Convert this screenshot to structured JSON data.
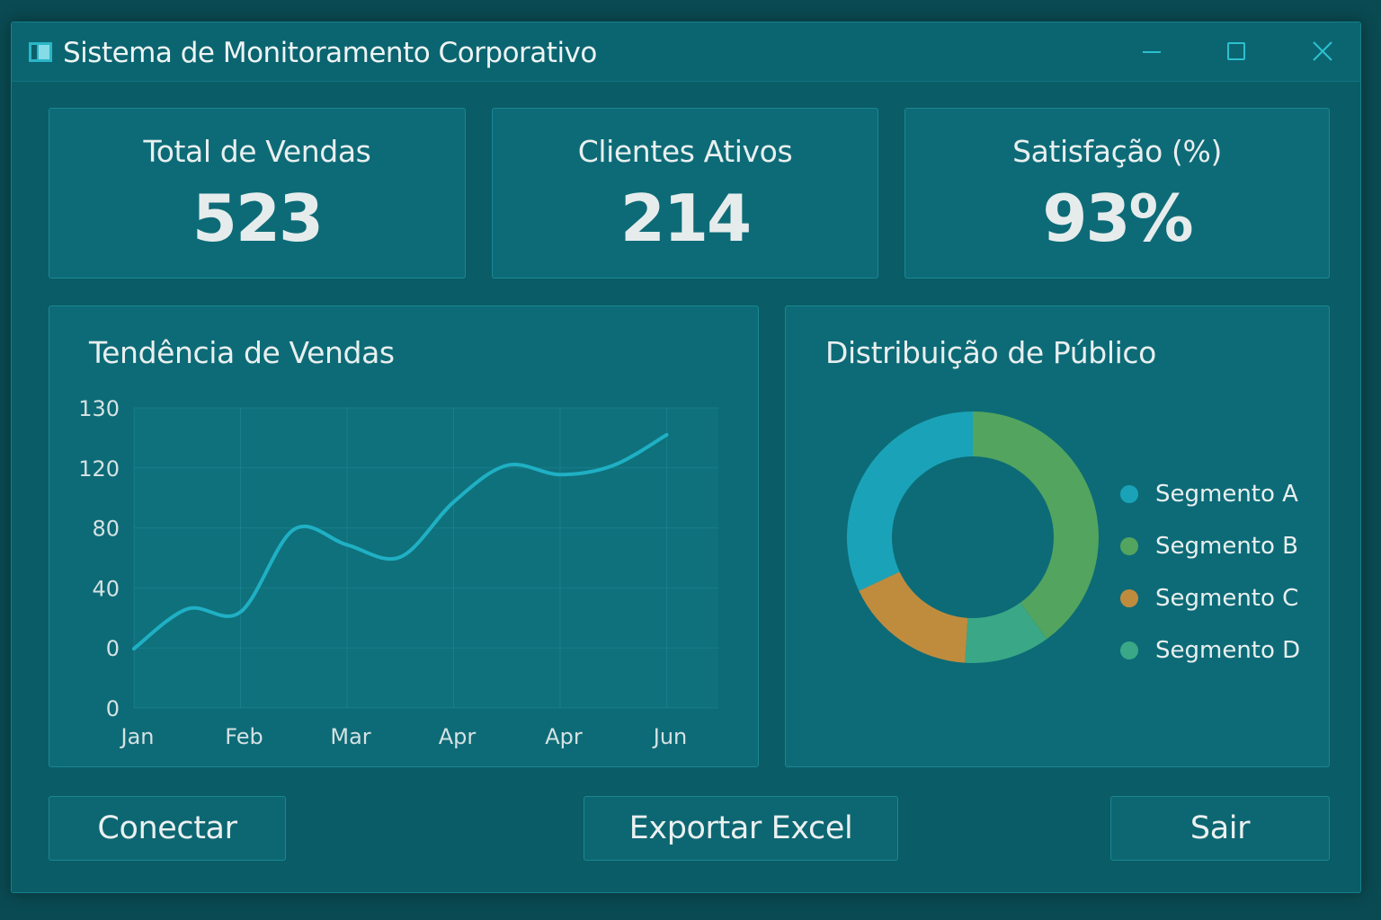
{
  "window": {
    "title": "Sistema de Monitoramento Corporativo",
    "icon": "app-window-icon",
    "controls": [
      "minimize-icon",
      "maximize-icon",
      "close-icon"
    ]
  },
  "kpis": [
    {
      "label": "Total de Vendas",
      "value": "523"
    },
    {
      "label": "Clientes Ativos",
      "value": "214"
    },
    {
      "label": "Satisfação (%)",
      "value": "93%"
    }
  ],
  "sales_panel": {
    "title": "Tendência de Vendas"
  },
  "audience_panel": {
    "title": "Distribuição de Público"
  },
  "buttons": {
    "connect": "Conectar",
    "export": "Exportar Excel",
    "exit": "Sair"
  },
  "colors": {
    "line": "#1fb0c4",
    "segment_a": "#1aa3b8",
    "segment_b": "#52a45f",
    "segment_c": "#bf8c3e",
    "segment_d": "#3aa886"
  },
  "chart_data": [
    {
      "type": "line",
      "title": "Tendência de Vendas",
      "categories": [
        "Jan",
        "Feb",
        "Mar",
        "Apr",
        "Apr",
        "Jun"
      ],
      "y_tick_labels": [
        "0",
        "0",
        "40",
        "80",
        "120",
        "130"
      ],
      "x": [
        "Jan",
        "Jan/Feb",
        "Feb",
        "Mar",
        "Mar/Apr",
        "Apr",
        "Apr/Apr",
        "Apr",
        "Apr/Jun",
        "Jun",
        "Jun+"
      ],
      "values": [
        0,
        26,
        24,
        78,
        68,
        60,
        96,
        120,
        114,
        120,
        140
      ],
      "grid": true
    },
    {
      "type": "pie",
      "title": "Distribuição de Público",
      "donut": true,
      "labels": [
        "Segmento A",
        "Segmento B",
        "Segmento C",
        "Segmento D"
      ],
      "values": [
        32,
        40,
        17,
        11
      ],
      "legend": "right"
    }
  ]
}
